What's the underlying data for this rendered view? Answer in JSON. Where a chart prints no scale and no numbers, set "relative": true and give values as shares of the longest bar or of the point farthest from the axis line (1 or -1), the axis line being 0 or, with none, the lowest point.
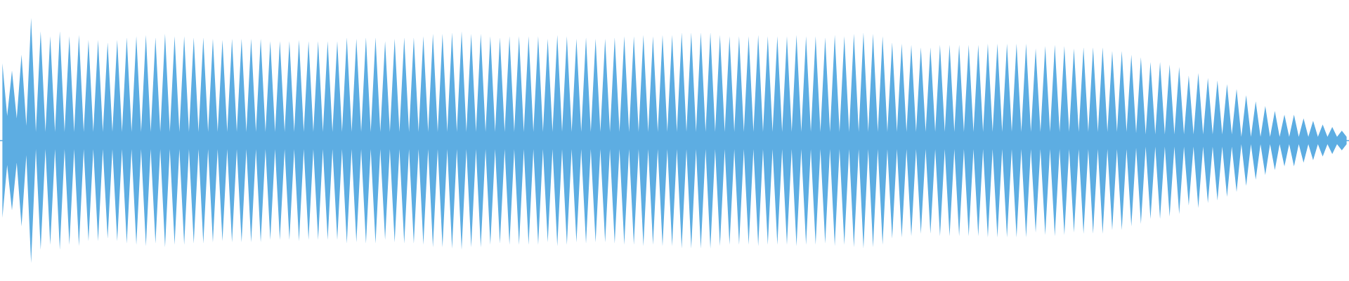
{
  "chart_data": {
    "type": "area",
    "relative": true,
    "ref_lines": [
      {
        "axis": "y",
        "value": 0,
        "color": "#5dade2"
      }
    ],
    "categories": [
      null,
      null,
      null,
      null,
      null,
      null,
      null,
      null,
      null,
      null,
      null,
      null,
      null,
      null,
      null,
      null,
      null,
      null,
      null,
      null,
      null,
      null,
      null,
      null,
      null,
      null,
      null,
      null,
      null,
      null,
      null,
      null,
      null,
      null,
      null,
      null,
      null,
      null,
      null,
      null,
      null,
      null,
      null,
      null,
      null,
      null,
      null,
      null,
      null,
      null,
      null,
      null,
      null,
      null,
      null,
      null,
      null,
      null,
      null,
      null,
      null,
      null,
      null,
      null,
      null,
      null,
      null,
      null,
      null,
      null,
      null,
      null,
      null,
      null,
      null,
      null,
      null,
      null,
      null,
      null,
      null,
      null,
      null,
      null,
      null,
      null,
      null,
      null,
      null,
      null,
      null,
      null,
      null,
      null,
      null,
      null,
      null,
      null,
      null,
      null,
      null,
      null,
      null,
      null,
      null,
      null,
      null,
      null,
      null,
      null,
      null,
      null,
      null,
      null,
      null,
      null,
      null,
      null,
      null,
      null,
      null,
      null,
      null,
      null,
      null,
      null,
      null,
      null,
      null,
      null,
      null,
      null,
      null,
      null,
      null,
      null,
      null,
      null,
      null,
      null,
      null,
      null,
      null,
      null,
      null,
      null,
      null,
      null,
      null,
      null,
      null,
      null,
      null,
      null,
      null,
      null,
      null,
      null,
      null,
      null,
      null,
      null,
      null,
      null,
      null,
      null,
      null,
      null,
      null,
      null,
      null,
      null,
      null,
      null,
      null,
      null,
      null,
      null,
      null,
      null,
      null,
      null,
      null,
      null,
      null,
      null,
      null,
      null,
      null,
      null,
      null,
      null,
      null,
      null,
      null,
      null,
      null,
      null,
      null,
      null,
      null,
      null,
      null,
      null,
      null,
      null,
      null,
      null,
      null,
      null,
      null,
      null,
      null,
      null,
      null,
      null,
      null,
      null,
      null,
      null,
      null,
      null,
      null,
      null,
      null,
      null,
      null,
      null,
      null,
      null,
      null,
      null,
      null,
      null,
      null,
      null,
      null,
      null,
      null,
      null,
      null,
      null,
      null,
      null,
      null,
      null,
      null,
      null,
      null,
      null,
      null,
      null,
      null,
      null,
      null,
      null,
      null,
      null,
      null,
      null,
      null,
      null,
      null,
      null,
      null,
      null,
      null,
      null,
      null,
      null,
      null,
      null,
      null,
      null,
      null,
      null,
      null,
      null,
      null,
      null,
      null,
      null
    ],
    "series": [
      {
        "color": "#5dade2",
        "values": [
          0.63,
          0.2,
          0.57,
          0.18,
          0.7,
          0.12,
          1,
          0.07,
          0.89,
          0.07,
          0.85,
          0.07,
          0.89,
          0.07,
          0.85,
          0.07,
          0.86,
          0.07,
          0.82,
          0.07,
          0.82,
          0.07,
          0.8,
          0.07,
          0.82,
          0.07,
          0.84,
          0.07,
          0.85,
          0.07,
          0.86,
          0.07,
          0.84,
          0.07,
          0.87,
          0.07,
          0.85,
          0.07,
          0.85,
          0.07,
          0.84,
          0.07,
          0.84,
          0.07,
          0.83,
          0.07,
          0.82,
          0.07,
          0.83,
          0.07,
          0.83,
          0.07,
          0.83,
          0.07,
          0.83,
          0.07,
          0.81,
          0.07,
          0.81,
          0.07,
          0.81,
          0.07,
          0.82,
          0.07,
          0.81,
          0.07,
          0.81,
          0.07,
          0.81,
          0.07,
          0.81,
          0.07,
          0.84,
          0.07,
          0.83,
          0.07,
          0.84,
          0.07,
          0.84,
          0.07,
          0.81,
          0.07,
          0.83,
          0.07,
          0.84,
          0.07,
          0.84,
          0.07,
          0.85,
          0.07,
          0.87,
          0.07,
          0.87,
          0.07,
          0.88,
          0.07,
          0.89,
          0.07,
          0.87,
          0.07,
          0.87,
          0.07,
          0.85,
          0.07,
          0.84,
          0.07,
          0.85,
          0.07,
          0.85,
          0.07,
          0.85,
          0.07,
          0.85,
          0.07,
          0.83,
          0.07,
          0.86,
          0.07,
          0.85,
          0.07,
          0.83,
          0.07,
          0.84,
          0.07,
          0.83,
          0.07,
          0.83,
          0.07,
          0.84,
          0.07,
          0.85,
          0.07,
          0.85,
          0.07,
          0.86,
          0.07,
          0.85,
          0.07,
          0.86,
          0.07,
          0.86,
          0.07,
          0.88,
          0.07,
          0.88,
          0.07,
          0.88,
          0.07,
          0.88,
          0.07,
          0.86,
          0.07,
          0.85,
          0.07,
          0.85,
          0.07,
          0.85,
          0.07,
          0.86,
          0.07,
          0.85,
          0.07,
          0.85,
          0.07,
          0.85,
          0.07,
          0.86,
          0.07,
          0.85,
          0.07,
          0.85,
          0.07,
          0.84,
          0.07,
          0.86,
          0.07,
          0.85,
          0.07,
          0.87,
          0.07,
          0.88,
          0.07,
          0.87,
          0.07,
          0.85,
          0.07,
          0.8,
          0.07,
          0.79,
          0.07,
          0.78,
          0.07,
          0.76,
          0.07,
          0.76,
          0.07,
          0.78,
          0.07,
          0.78,
          0.07,
          0.78,
          0.07,
          0.78,
          0.07,
          0.78,
          0.07,
          0.79,
          0.07,
          0.79,
          0.07,
          0.79,
          0.07,
          0.79,
          0.07,
          0.79,
          0.07,
          0.75,
          0.07,
          0.77,
          0.07,
          0.78,
          0.07,
          0.77,
          0.07,
          0.75,
          0.07,
          0.76,
          0.07,
          0.76,
          0.07,
          0.76,
          0.07,
          0.73,
          0.07,
          0.73,
          0.07,
          0.7,
          0.06,
          0.68,
          0.05,
          0.64,
          0.05,
          0.64,
          0.05,
          0.62,
          0.05,
          0.6,
          0.05,
          0.53,
          0.05,
          0.55,
          0.05,
          0.51,
          0.05,
          0.49,
          0.05,
          0.46,
          0.05,
          0.42,
          0.03,
          0.37,
          0.03,
          0.32,
          0.03,
          0.28,
          0.03,
          0.24,
          0.03,
          0.21,
          0.03,
          0.21,
          0.03,
          0.18,
          0.03,
          0.16,
          0.03,
          0.13,
          0.03,
          0.11,
          0.03,
          0.08,
          0.03
        ]
      },
      {
        "color": "#5dade2",
        "values": [
          -0.63,
          -0.2,
          -0.57,
          -0.18,
          -0.7,
          -0.12,
          -1,
          -0.07,
          -0.89,
          -0.07,
          -0.85,
          -0.07,
          -0.89,
          -0.07,
          -0.85,
          -0.07,
          -0.86,
          -0.07,
          -0.82,
          -0.07,
          -0.82,
          -0.07,
          -0.8,
          -0.07,
          -0.82,
          -0.07,
          -0.84,
          -0.07,
          -0.85,
          -0.07,
          -0.86,
          -0.07,
          -0.84,
          -0.07,
          -0.87,
          -0.07,
          -0.85,
          -0.07,
          -0.85,
          -0.07,
          -0.84,
          -0.07,
          -0.84,
          -0.07,
          -0.83,
          -0.07,
          -0.82,
          -0.07,
          -0.83,
          -0.07,
          -0.83,
          -0.07,
          -0.83,
          -0.07,
          -0.83,
          -0.07,
          -0.81,
          -0.07,
          -0.81,
          -0.07,
          -0.81,
          -0.07,
          -0.82,
          -0.07,
          -0.81,
          -0.07,
          -0.81,
          -0.07,
          -0.81,
          -0.07,
          -0.81,
          -0.07,
          -0.84,
          -0.07,
          -0.83,
          -0.07,
          -0.84,
          -0.07,
          -0.84,
          -0.07,
          -0.81,
          -0.07,
          -0.83,
          -0.07,
          -0.84,
          -0.07,
          -0.84,
          -0.07,
          -0.85,
          -0.07,
          -0.87,
          -0.07,
          -0.87,
          -0.07,
          -0.88,
          -0.07,
          -0.89,
          -0.07,
          -0.87,
          -0.07,
          -0.87,
          -0.07,
          -0.85,
          -0.07,
          -0.84,
          -0.07,
          -0.85,
          -0.07,
          -0.85,
          -0.07,
          -0.85,
          -0.07,
          -0.85,
          -0.07,
          -0.83,
          -0.07,
          -0.86,
          -0.07,
          -0.85,
          -0.07,
          -0.83,
          -0.07,
          -0.84,
          -0.07,
          -0.83,
          -0.07,
          -0.83,
          -0.07,
          -0.84,
          -0.07,
          -0.85,
          -0.07,
          -0.85,
          -0.07,
          -0.86,
          -0.07,
          -0.85,
          -0.07,
          -0.86,
          -0.07,
          -0.86,
          -0.07,
          -0.88,
          -0.07,
          -0.88,
          -0.07,
          -0.88,
          -0.07,
          -0.88,
          -0.07,
          -0.86,
          -0.07,
          -0.85,
          -0.07,
          -0.85,
          -0.07,
          -0.85,
          -0.07,
          -0.86,
          -0.07,
          -0.85,
          -0.07,
          -0.85,
          -0.07,
          -0.85,
          -0.07,
          -0.86,
          -0.07,
          -0.85,
          -0.07,
          -0.85,
          -0.07,
          -0.84,
          -0.07,
          -0.86,
          -0.07,
          -0.85,
          -0.07,
          -0.87,
          -0.07,
          -0.88,
          -0.07,
          -0.87,
          -0.07,
          -0.85,
          -0.07,
          -0.8,
          -0.07,
          -0.79,
          -0.07,
          -0.78,
          -0.07,
          -0.76,
          -0.07,
          -0.76,
          -0.07,
          -0.78,
          -0.07,
          -0.78,
          -0.07,
          -0.78,
          -0.07,
          -0.78,
          -0.07,
          -0.78,
          -0.07,
          -0.79,
          -0.07,
          -0.79,
          -0.07,
          -0.79,
          -0.07,
          -0.79,
          -0.07,
          -0.79,
          -0.07,
          -0.75,
          -0.07,
          -0.77,
          -0.07,
          -0.78,
          -0.07,
          -0.77,
          -0.07,
          -0.75,
          -0.07,
          -0.76,
          -0.07,
          -0.76,
          -0.07,
          -0.76,
          -0.07,
          -0.73,
          -0.07,
          -0.73,
          -0.07,
          -0.7,
          -0.06,
          -0.68,
          -0.05,
          -0.64,
          -0.05,
          -0.64,
          -0.05,
          -0.62,
          -0.05,
          -0.6,
          -0.05,
          -0.53,
          -0.05,
          -0.55,
          -0.05,
          -0.51,
          -0.05,
          -0.49,
          -0.05,
          -0.46,
          -0.05,
          -0.42,
          -0.03,
          -0.37,
          -0.03,
          -0.32,
          -0.03,
          -0.28,
          -0.03,
          -0.24,
          -0.03,
          -0.21,
          -0.03,
          -0.21,
          -0.03,
          -0.18,
          -0.03,
          -0.16,
          -0.03,
          -0.13,
          -0.03,
          -0.11,
          -0.03,
          -0.08,
          -0.03
        ]
      }
    ]
  }
}
